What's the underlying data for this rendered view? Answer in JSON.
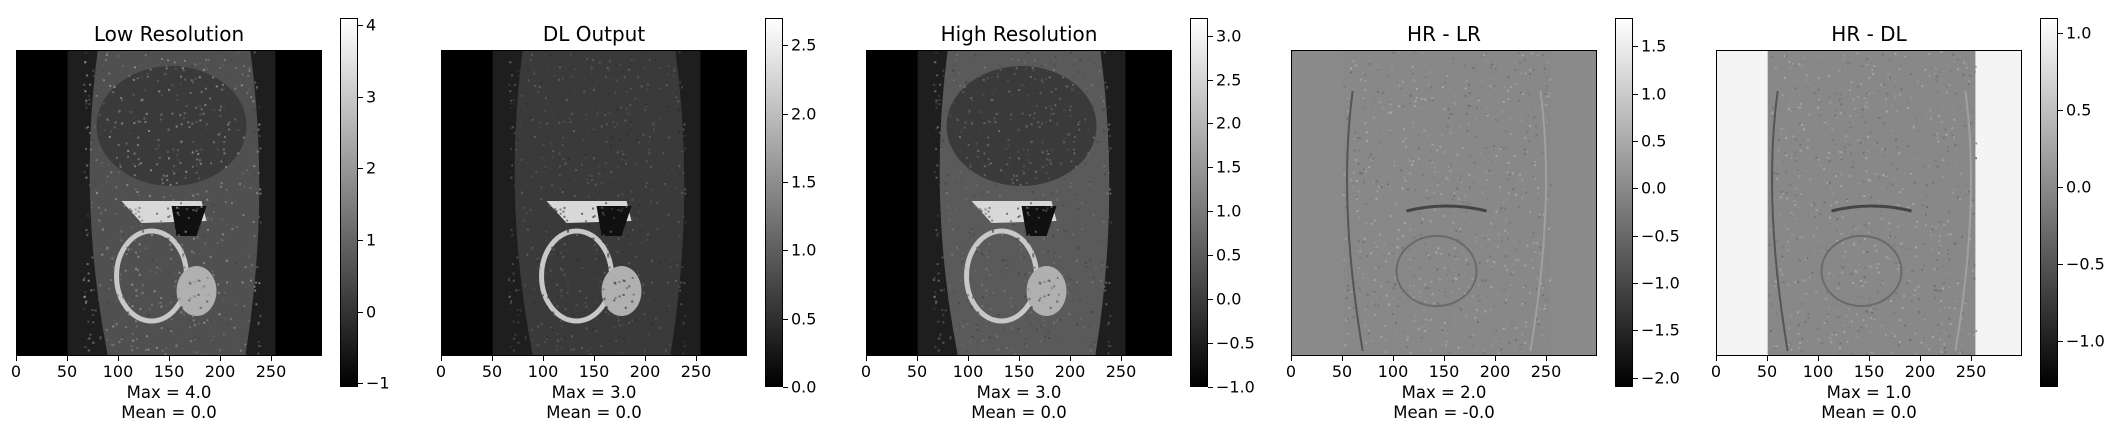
{
  "panels": [
    {
      "title": "Low Resolution",
      "stats": {
        "max": "Max = 4.0",
        "mean": "Mean = 0.0"
      },
      "x_ticks": [
        "0",
        "50",
        "100",
        "150",
        "200",
        "250"
      ],
      "colorbar": {
        "ticks": [
          "4",
          "3",
          "2",
          "1",
          "0",
          "−1"
        ],
        "vmin": -1.05,
        "vmax": 4.1,
        "values": [
          4,
          3,
          2,
          1,
          0,
          -1
        ]
      },
      "background": "#000000",
      "style": "lr"
    },
    {
      "title": "DL Output",
      "stats": {
        "max": "Max = 3.0",
        "mean": "Mean = 0.0"
      },
      "x_ticks": [
        "0",
        "50",
        "100",
        "150",
        "200",
        "250"
      ],
      "colorbar": {
        "ticks": [
          "2.5",
          "2.0",
          "1.5",
          "1.0",
          "0.5",
          "0.0"
        ],
        "vmin": 0.0,
        "vmax": 2.7,
        "values": [
          2.5,
          2.0,
          1.5,
          1.0,
          0.5,
          0.0
        ]
      },
      "background": "#000000",
      "style": "dl"
    },
    {
      "title": "High Resolution",
      "stats": {
        "max": "Max = 3.0",
        "mean": "Mean = 0.0"
      },
      "x_ticks": [
        "0",
        "50",
        "100",
        "150",
        "200",
        "250"
      ],
      "colorbar": {
        "ticks": [
          "3.0",
          "2.5",
          "2.0",
          "1.5",
          "1.0",
          "0.5",
          "0.0",
          "−0.5",
          "−1.0"
        ],
        "vmin": -1.0,
        "vmax": 3.2,
        "values": [
          3.0,
          2.5,
          2.0,
          1.5,
          1.0,
          0.5,
          0.0,
          -0.5,
          -1.0
        ]
      },
      "background": "#000000",
      "style": "hr"
    },
    {
      "title": "HR - LR",
      "stats": {
        "max": "Max = 2.0",
        "mean": "Mean = -0.0"
      },
      "x_ticks": [
        "0",
        "50",
        "100",
        "150",
        "200",
        "250"
      ],
      "colorbar": {
        "ticks": [
          "1.5",
          "1.0",
          "0.5",
          "0.0",
          "−0.5",
          "−1.0",
          "−1.5",
          "−2.0"
        ],
        "vmin": -2.1,
        "vmax": 1.8,
        "values": [
          1.5,
          1.0,
          0.5,
          0.0,
          -0.5,
          -1.0,
          -1.5,
          -2.0
        ]
      },
      "background": "#8a8a8a",
      "style": "diff"
    },
    {
      "title": "HR - DL",
      "stats": {
        "max": "Max = 1.0",
        "mean": "Mean = 0.0"
      },
      "x_ticks": [
        "0",
        "50",
        "100",
        "150",
        "200",
        "250"
      ],
      "colorbar": {
        "ticks": [
          "1.0",
          "0.5",
          "0.0",
          "−0.5",
          "−1.0"
        ],
        "vmin": -1.3,
        "vmax": 1.1,
        "values": [
          1.0,
          0.5,
          0.0,
          -0.5,
          -1.0
        ]
      },
      "background": "#f4f4f4",
      "style": "diff2"
    }
  ]
}
